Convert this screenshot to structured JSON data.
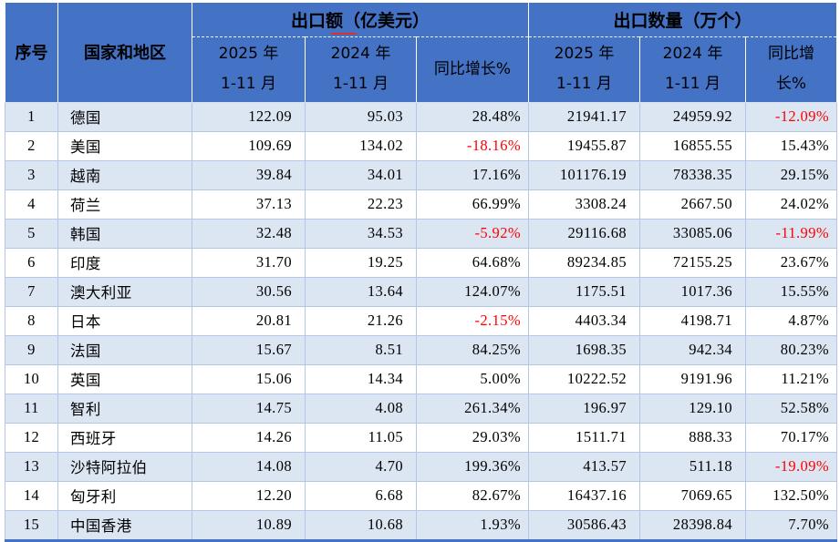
{
  "header": {
    "col_no": "序号",
    "col_country": "国家和地区",
    "group_amount": "出口额（亿美元）",
    "group_quantity": "出口数量（万个）",
    "sub_year_2025": "2025 年",
    "sub_year_2024": "2024 年",
    "sub_period": "1-11 月",
    "sub_yoy": "同比增长%",
    "sub_yoy_line1": "同比增",
    "sub_yoy_line2": "长%"
  },
  "rows": [
    {
      "no": "1",
      "country": "德国",
      "amount_2025": "122.09",
      "amount_2024": "95.03",
      "amount_yoy": "28.48%",
      "qty_2025": "21941.17",
      "qty_2024": "24959.92",
      "qty_yoy": "-12.09%"
    },
    {
      "no": "2",
      "country": "美国",
      "amount_2025": "109.69",
      "amount_2024": "134.02",
      "amount_yoy": "-18.16%",
      "qty_2025": "19455.87",
      "qty_2024": "16855.55",
      "qty_yoy": "15.43%"
    },
    {
      "no": "3",
      "country": "越南",
      "amount_2025": "39.84",
      "amount_2024": "34.01",
      "amount_yoy": "17.16%",
      "qty_2025": "101176.19",
      "qty_2024": "78338.35",
      "qty_yoy": "29.15%"
    },
    {
      "no": "4",
      "country": "荷兰",
      "amount_2025": "37.13",
      "amount_2024": "22.23",
      "amount_yoy": "66.99%",
      "qty_2025": "3308.24",
      "qty_2024": "2667.50",
      "qty_yoy": "24.02%"
    },
    {
      "no": "5",
      "country": "韩国",
      "amount_2025": "32.48",
      "amount_2024": "34.53",
      "amount_yoy": "-5.92%",
      "qty_2025": "29116.68",
      "qty_2024": "33085.06",
      "qty_yoy": "-11.99%"
    },
    {
      "no": "6",
      "country": "印度",
      "amount_2025": "31.70",
      "amount_2024": "19.25",
      "amount_yoy": "64.68%",
      "qty_2025": "89234.85",
      "qty_2024": "72155.25",
      "qty_yoy": "23.67%"
    },
    {
      "no": "7",
      "country": "澳大利亚",
      "amount_2025": "30.56",
      "amount_2024": "13.64",
      "amount_yoy": "124.07%",
      "qty_2025": "1175.51",
      "qty_2024": "1017.36",
      "qty_yoy": "15.55%"
    },
    {
      "no": "8",
      "country": "日本",
      "amount_2025": "20.81",
      "amount_2024": "21.26",
      "amount_yoy": "-2.15%",
      "qty_2025": "4403.34",
      "qty_2024": "4198.71",
      "qty_yoy": "4.87%"
    },
    {
      "no": "9",
      "country": "法国",
      "amount_2025": "15.67",
      "amount_2024": "8.51",
      "amount_yoy": "84.25%",
      "qty_2025": "1698.35",
      "qty_2024": "942.34",
      "qty_yoy": "80.23%"
    },
    {
      "no": "10",
      "country": "英国",
      "amount_2025": "15.06",
      "amount_2024": "14.34",
      "amount_yoy": "5.00%",
      "qty_2025": "10222.52",
      "qty_2024": "9191.96",
      "qty_yoy": "11.21%"
    },
    {
      "no": "11",
      "country": "智利",
      "amount_2025": "14.75",
      "amount_2024": "4.08",
      "amount_yoy": "261.34%",
      "qty_2025": "196.97",
      "qty_2024": "129.10",
      "qty_yoy": "52.58%"
    },
    {
      "no": "12",
      "country": "西班牙",
      "amount_2025": "14.26",
      "amount_2024": "11.05",
      "amount_yoy": "29.03%",
      "qty_2025": "1511.71",
      "qty_2024": "888.33",
      "qty_yoy": "70.17%"
    },
    {
      "no": "13",
      "country": "沙特阿拉伯",
      "amount_2025": "14.08",
      "amount_2024": "4.70",
      "amount_yoy": "199.36%",
      "qty_2025": "413.57",
      "qty_2024": "511.18",
      "qty_yoy": "-19.09%"
    },
    {
      "no": "14",
      "country": "匈牙利",
      "amount_2025": "12.20",
      "amount_2024": "6.68",
      "amount_yoy": "82.67%",
      "qty_2025": "16437.16",
      "qty_2024": "7069.65",
      "qty_yoy": "132.50%"
    },
    {
      "no": "15",
      "country": "中国香港",
      "amount_2025": "10.89",
      "amount_2024": "10.68",
      "amount_yoy": "1.93%",
      "qty_2025": "30586.43",
      "qty_2024": "28398.84",
      "qty_yoy": "7.70%"
    }
  ],
  "colors": {
    "header_bg": "#4472C4",
    "row_alt_bg": "#DCE6F2",
    "grid": "#B4C6E7",
    "negative": "#FF0000",
    "outer_bottom_border": "#4472C4",
    "spellcheck_mark": "#D93228"
  }
}
